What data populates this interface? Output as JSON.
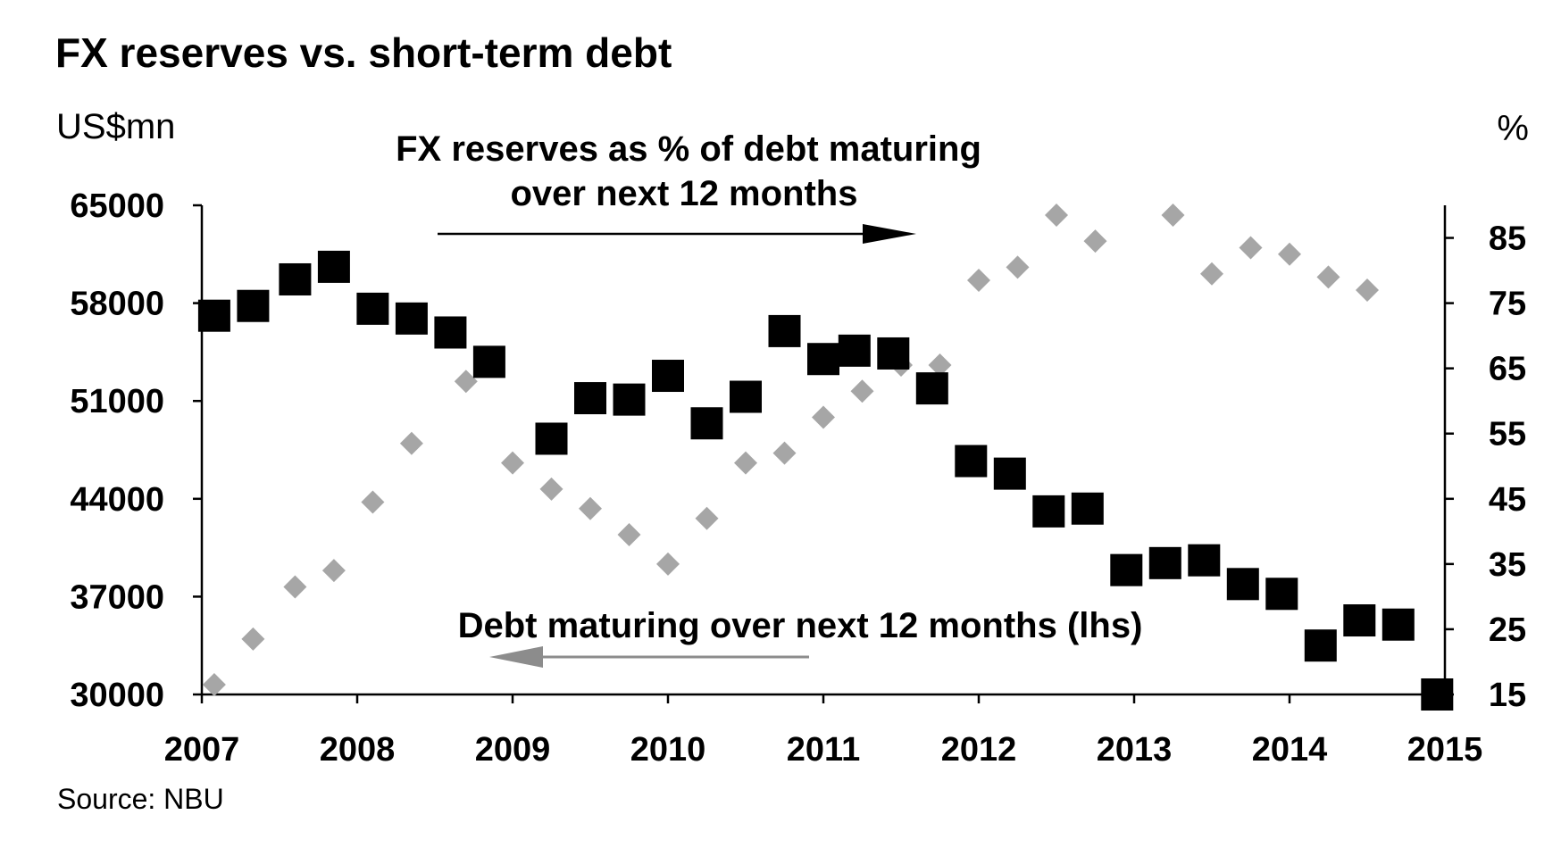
{
  "chart_data": {
    "type": "scatter",
    "title": "FX reserves vs. short-term debt",
    "left_axis": {
      "unit": "US$mn",
      "range": [
        30000,
        65000
      ],
      "ticks": [
        "65000",
        "58000",
        "51000",
        "44000",
        "37000",
        "30000"
      ],
      "tick_values": [
        65000,
        58000,
        51000,
        44000,
        37000,
        30000
      ]
    },
    "right_axis": {
      "unit": "%",
      "range": [
        15,
        90
      ],
      "ticks": [
        "85",
        "75",
        "65",
        "55",
        "45",
        "35",
        "25",
        "15"
      ],
      "tick_values": [
        85,
        75,
        65,
        55,
        45,
        35,
        25,
        15
      ]
    },
    "x_axis": {
      "range": [
        2007,
        2015
      ],
      "ticks": [
        "2007",
        "2008",
        "2009",
        "2010",
        "2011",
        "2012",
        "2013",
        "2014",
        "2015"
      ],
      "tick_values": [
        2007,
        2008,
        2009,
        2010,
        2011,
        2012,
        2013,
        2014,
        2015
      ]
    },
    "series": [
      {
        "name": "Debt maturing over next 12 months (lhs)",
        "axis": "left",
        "marker": "square",
        "color": "#000000",
        "points": [
          [
            2007.08,
            57100
          ],
          [
            2007.33,
            57800
          ],
          [
            2007.6,
            59700
          ],
          [
            2007.85,
            60600
          ],
          [
            2008.1,
            57600
          ],
          [
            2008.35,
            56900
          ],
          [
            2008.6,
            55900
          ],
          [
            2008.85,
            53800
          ],
          [
            2009.25,
            48300
          ],
          [
            2009.5,
            51200
          ],
          [
            2009.75,
            51100
          ],
          [
            2010.0,
            52800
          ],
          [
            2010.25,
            49400
          ],
          [
            2010.5,
            51300
          ],
          [
            2010.75,
            56000
          ],
          [
            2011.0,
            54000
          ],
          [
            2011.2,
            54600
          ],
          [
            2011.45,
            54400
          ],
          [
            2011.7,
            51900
          ],
          [
            2011.95,
            46700
          ],
          [
            2012.2,
            45800
          ],
          [
            2012.45,
            43100
          ],
          [
            2012.7,
            43300
          ],
          [
            2012.95,
            38900
          ],
          [
            2013.2,
            39400
          ],
          [
            2013.45,
            39600
          ],
          [
            2013.7,
            37900
          ],
          [
            2013.95,
            37200
          ],
          [
            2014.2,
            33500
          ],
          [
            2014.45,
            35300
          ],
          [
            2014.7,
            35000
          ],
          [
            2014.95,
            30000
          ]
        ]
      },
      {
        "name": "FX reserves as % of debt maturing over next 12 months",
        "axis": "right",
        "marker": "diamond",
        "color": "#a6a6a6",
        "points": [
          [
            2007.08,
            16.5
          ],
          [
            2007.33,
            23.5
          ],
          [
            2007.6,
            31.5
          ],
          [
            2007.85,
            34.0
          ],
          [
            2008.1,
            44.5
          ],
          [
            2008.35,
            53.5
          ],
          [
            2008.7,
            63.0
          ],
          [
            2009.0,
            50.5
          ],
          [
            2009.25,
            46.5
          ],
          [
            2009.5,
            43.5
          ],
          [
            2009.75,
            39.5
          ],
          [
            2010.0,
            35.0
          ],
          [
            2010.25,
            42.0
          ],
          [
            2010.5,
            50.5
          ],
          [
            2010.75,
            52.0
          ],
          [
            2011.0,
            57.5
          ],
          [
            2011.25,
            61.5
          ],
          [
            2011.5,
            65.5
          ],
          [
            2011.75,
            65.5
          ],
          [
            2012.0,
            78.5
          ],
          [
            2012.25,
            80.5
          ],
          [
            2012.5,
            88.5
          ],
          [
            2012.75,
            84.5
          ],
          [
            2013.25,
            88.5
          ],
          [
            2013.5,
            79.5
          ],
          [
            2013.75,
            83.5
          ],
          [
            2014.0,
            82.5
          ],
          [
            2014.25,
            79.0
          ],
          [
            2014.5,
            77.0
          ]
        ]
      }
    ],
    "annotations": {
      "upper_label_line1": "FX reserves as % of debt maturing",
      "upper_label_line2": "over next 12 months",
      "upper_arrow_direction": "right",
      "lower_label": "Debt maturing over next 12 months (lhs)",
      "lower_arrow_direction": "left"
    },
    "source": "Source: NBU"
  }
}
